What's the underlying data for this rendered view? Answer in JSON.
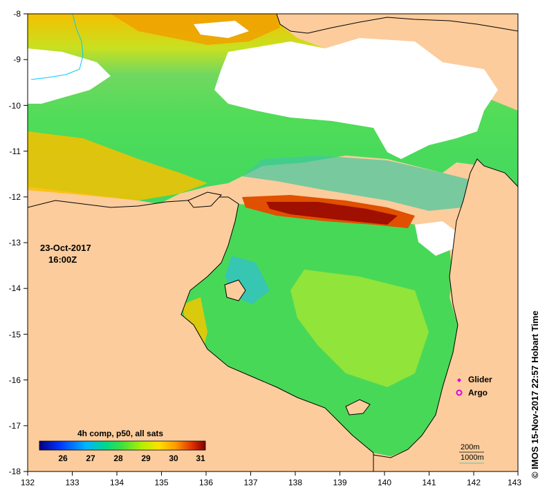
{
  "map": {
    "date": "23-Oct-2017",
    "time": "16:00Z",
    "credit": "© IMOS 15-Nov-2017 22:57 Hobart Time",
    "x_ticks": [
      "132",
      "133",
      "134",
      "135",
      "136",
      "137",
      "138",
      "139",
      "140",
      "141",
      "142",
      "143"
    ],
    "y_ticks": [
      "-8",
      "-9",
      "-10",
      "-11",
      "-12",
      "-13",
      "-14",
      "-15",
      "-16",
      "-17",
      "-18"
    ],
    "legend": [
      {
        "label": "Glider",
        "color": "#e000e0"
      },
      {
        "label": "Argo",
        "color": "#e000e0"
      }
    ],
    "depth": {
      "contour_200": "200m",
      "contour_1000": "1000m"
    },
    "colorbar": {
      "title": "4h comp, p50, all sats",
      "ticks": [
        "26",
        "27",
        "28",
        "29",
        "30",
        "31"
      ],
      "min": 25.3,
      "max": 31.2
    },
    "colors": {
      "land": "#fccc9c",
      "no_data": "#ffffff",
      "coast": "#000000",
      "river": "#00c8ff"
    }
  }
}
